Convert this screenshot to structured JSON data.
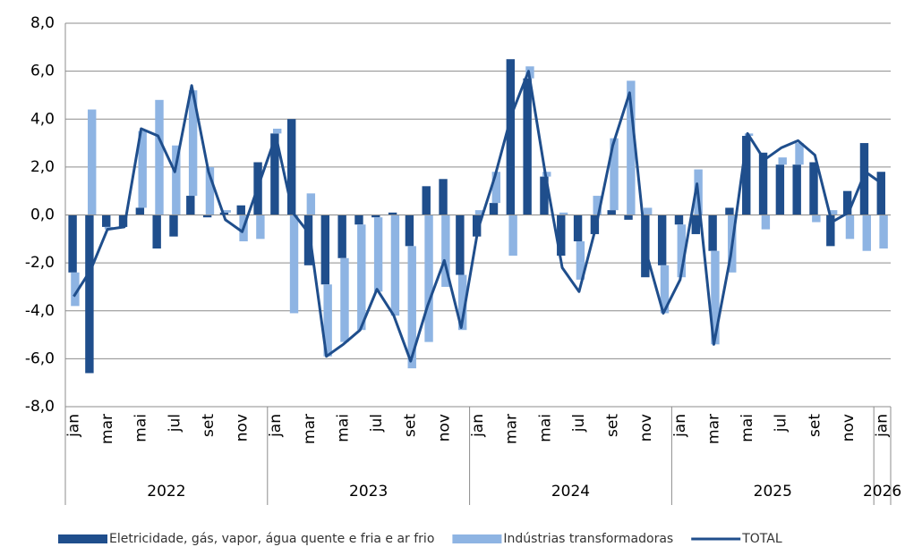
{
  "chart_data": {
    "type": "bar",
    "categories": [
      "jan",
      null,
      "mar",
      null,
      "mai",
      null,
      "jul",
      null,
      "set",
      null,
      "nov",
      null,
      "jan",
      null,
      "mar",
      null,
      "mai",
      null,
      "jul",
      null,
      "set",
      null,
      "nov",
      null,
      "jan",
      null,
      "mar",
      null,
      "mai",
      null,
      "jul",
      null,
      "set",
      null,
      "nov",
      null,
      "jan",
      null,
      "mar",
      null,
      "mai",
      null,
      "jul",
      null,
      "set",
      null,
      "nov",
      null,
      "jan"
    ],
    "years": [
      "2022",
      "2023",
      "2024",
      "2025",
      "2026"
    ],
    "series": [
      {
        "name": "Eletricidade, gás, vapor, água quente e fria e ar frio",
        "type": "bar",
        "color": "#1f4e8c",
        "values": [
          -2.4,
          -6.6,
          -0.5,
          -0.5,
          0.3,
          -1.4,
          -0.9,
          0.8,
          -0.1,
          0.1,
          0.4,
          2.2,
          3.4,
          4.0,
          -2.1,
          -2.9,
          -1.8,
          -0.4,
          -0.1,
          0.1,
          -1.3,
          1.2,
          1.5,
          -2.5,
          -0.9,
          0.5,
          6.5,
          5.7,
          1.6,
          -1.7,
          -1.1,
          -0.8,
          0.2,
          -0.2,
          -2.6,
          -2.1,
          -0.4,
          -0.8,
          -1.5,
          0.3,
          3.3,
          2.6,
          2.1,
          2.1,
          2.2,
          -1.3,
          1.0,
          3.0,
          1.8
        ]
      },
      {
        "name": "Indústrias transformadoras",
        "type": "bar",
        "color": "#8eb4e3",
        "values": [
          -1.4,
          4.4,
          -0.1,
          0.0,
          3.2,
          4.8,
          2.9,
          4.4,
          2.0,
          0.1,
          -1.1,
          -1.0,
          0.2,
          -4.1,
          0.9,
          -3.0,
          -3.5,
          -4.4,
          -3.1,
          -4.2,
          -5.1,
          -5.3,
          -3.0,
          -2.3,
          0.2,
          1.3,
          -1.7,
          0.5,
          0.2,
          0.1,
          -1.6,
          0.8,
          3.0,
          5.6,
          0.3,
          -2.0,
          -2.2,
          1.9,
          -3.9,
          -2.4,
          0.1,
          -0.6,
          0.3,
          0.9,
          -0.3,
          0.2,
          -1.0,
          -1.5,
          -1.4
        ]
      },
      {
        "name": "TOTAL",
        "type": "line",
        "color": "#1f4e8c",
        "values": [
          -3.4,
          -2.3,
          -0.6,
          -0.5,
          3.6,
          3.3,
          1.8,
          5.4,
          1.8,
          -0.2,
          -0.7,
          1.3,
          3.3,
          0.1,
          -0.8,
          -5.9,
          -5.4,
          -4.8,
          -3.1,
          -4.2,
          -6.1,
          -3.8,
          -1.9,
          -4.7,
          -0.6,
          1.6,
          4.2,
          6.0,
          1.7,
          -2.2,
          -3.2,
          -0.5,
          2.9,
          5.1,
          -1.6,
          -4.1,
          -2.7,
          1.3,
          -5.4,
          -1.7,
          3.4,
          2.3,
          2.8,
          3.1,
          2.5,
          -0.3,
          0.1,
          1.8,
          1.3
        ]
      }
    ],
    "ylim": [
      -8,
      8
    ],
    "yticks": [
      {
        "value": -8,
        "label": "-8,0"
      },
      {
        "value": -6,
        "label": "-6,0"
      },
      {
        "value": -4,
        "label": "-4,0"
      },
      {
        "value": -2,
        "label": "-2,0"
      },
      {
        "value": 0,
        "label": "0,0"
      },
      {
        "value": 2,
        "label": "2,0"
      },
      {
        "value": 4,
        "label": "4,0"
      },
      {
        "value": 6,
        "label": "6,0"
      },
      {
        "value": 8,
        "label": "8,0"
      }
    ],
    "grid": true,
    "legend": "bottom"
  }
}
